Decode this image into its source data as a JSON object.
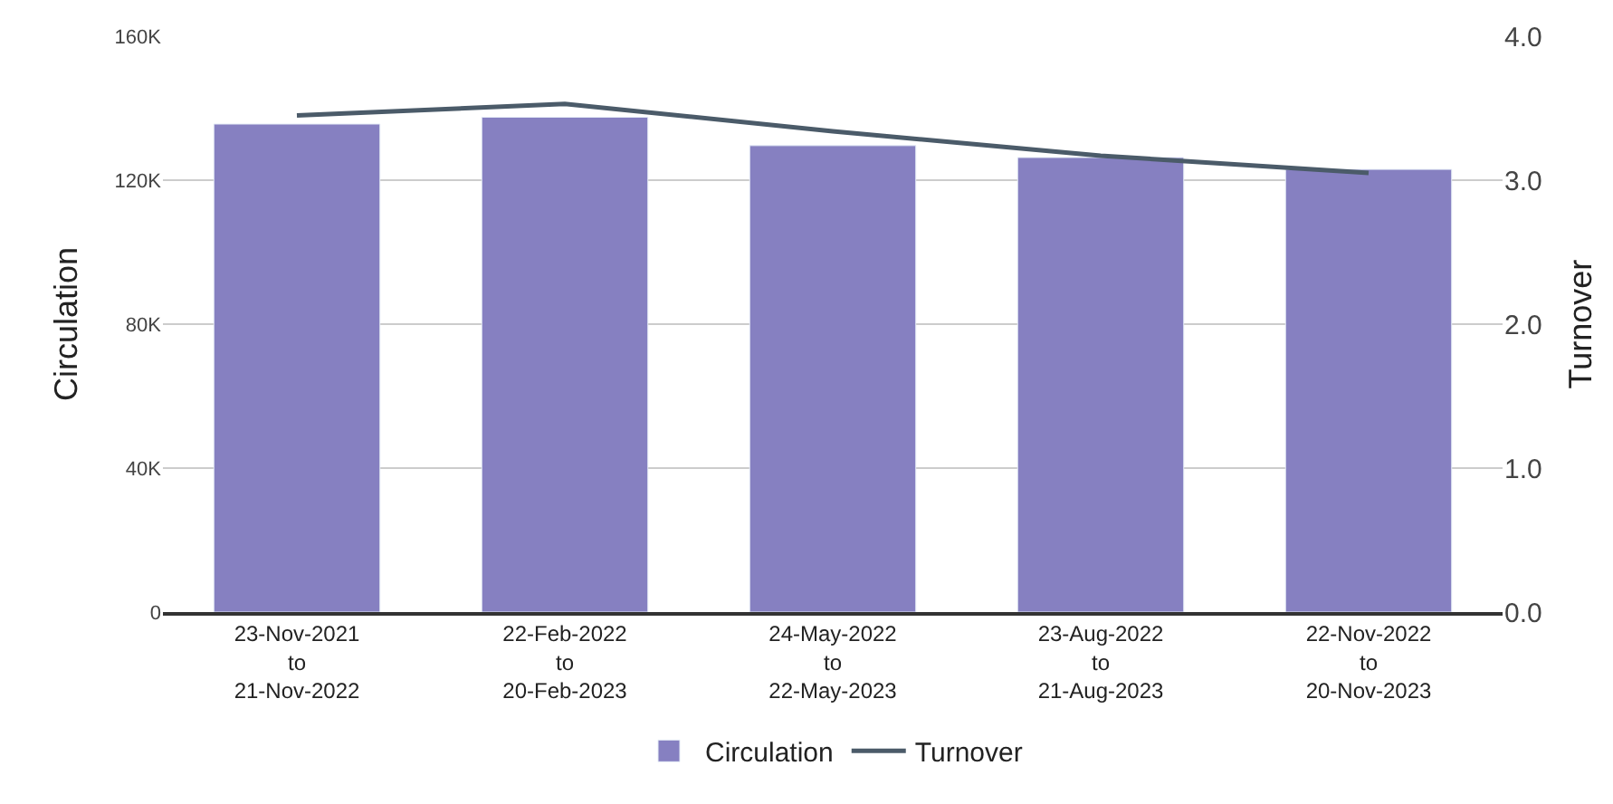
{
  "chart_data": {
    "type": "bar",
    "categories": [
      "23-Nov-2021\nto\n21-Nov-2022",
      "22-Feb-2022\nto\n20-Feb-2023",
      "24-May-2022\nto\n22-May-2023",
      "23-Aug-2022\nto\n21-Aug-2023",
      "22-Nov-2022\nto\n20-Nov-2023"
    ],
    "series": [
      {
        "name": "Circulation",
        "color": "#8680c1",
        "values": [
          135600,
          137500,
          129600,
          126300,
          123000
        ]
      },
      {
        "name": "Turnover",
        "type": "line",
        "axis": "y2",
        "color": "#4b5b69",
        "values": [
          3.45,
          3.53,
          3.34,
          3.17,
          3.05
        ]
      }
    ],
    "ylabel": "Circulation",
    "y2label": "Turnover",
    "ylim": [
      0,
      160000
    ],
    "yticks": [
      0,
      {
        "value": 40000,
        "label": "40K"
      },
      {
        "value": 80000,
        "label": "80K"
      },
      {
        "value": 120000,
        "label": "120K"
      },
      {
        "value": 160000,
        "label": "160K"
      }
    ],
    "y2lim": [
      0,
      4
    ],
    "y2ticks": [
      {
        "value": 0,
        "label": "0.0"
      },
      {
        "value": 1,
        "label": "1.0"
      },
      {
        "value": 2,
        "label": "2.0"
      },
      {
        "value": 3,
        "label": "3.0"
      },
      {
        "value": 4,
        "label": "4.0"
      }
    ],
    "grid": "y",
    "legend": "bottom",
    "marker": "none",
    "line_style": "solid"
  }
}
